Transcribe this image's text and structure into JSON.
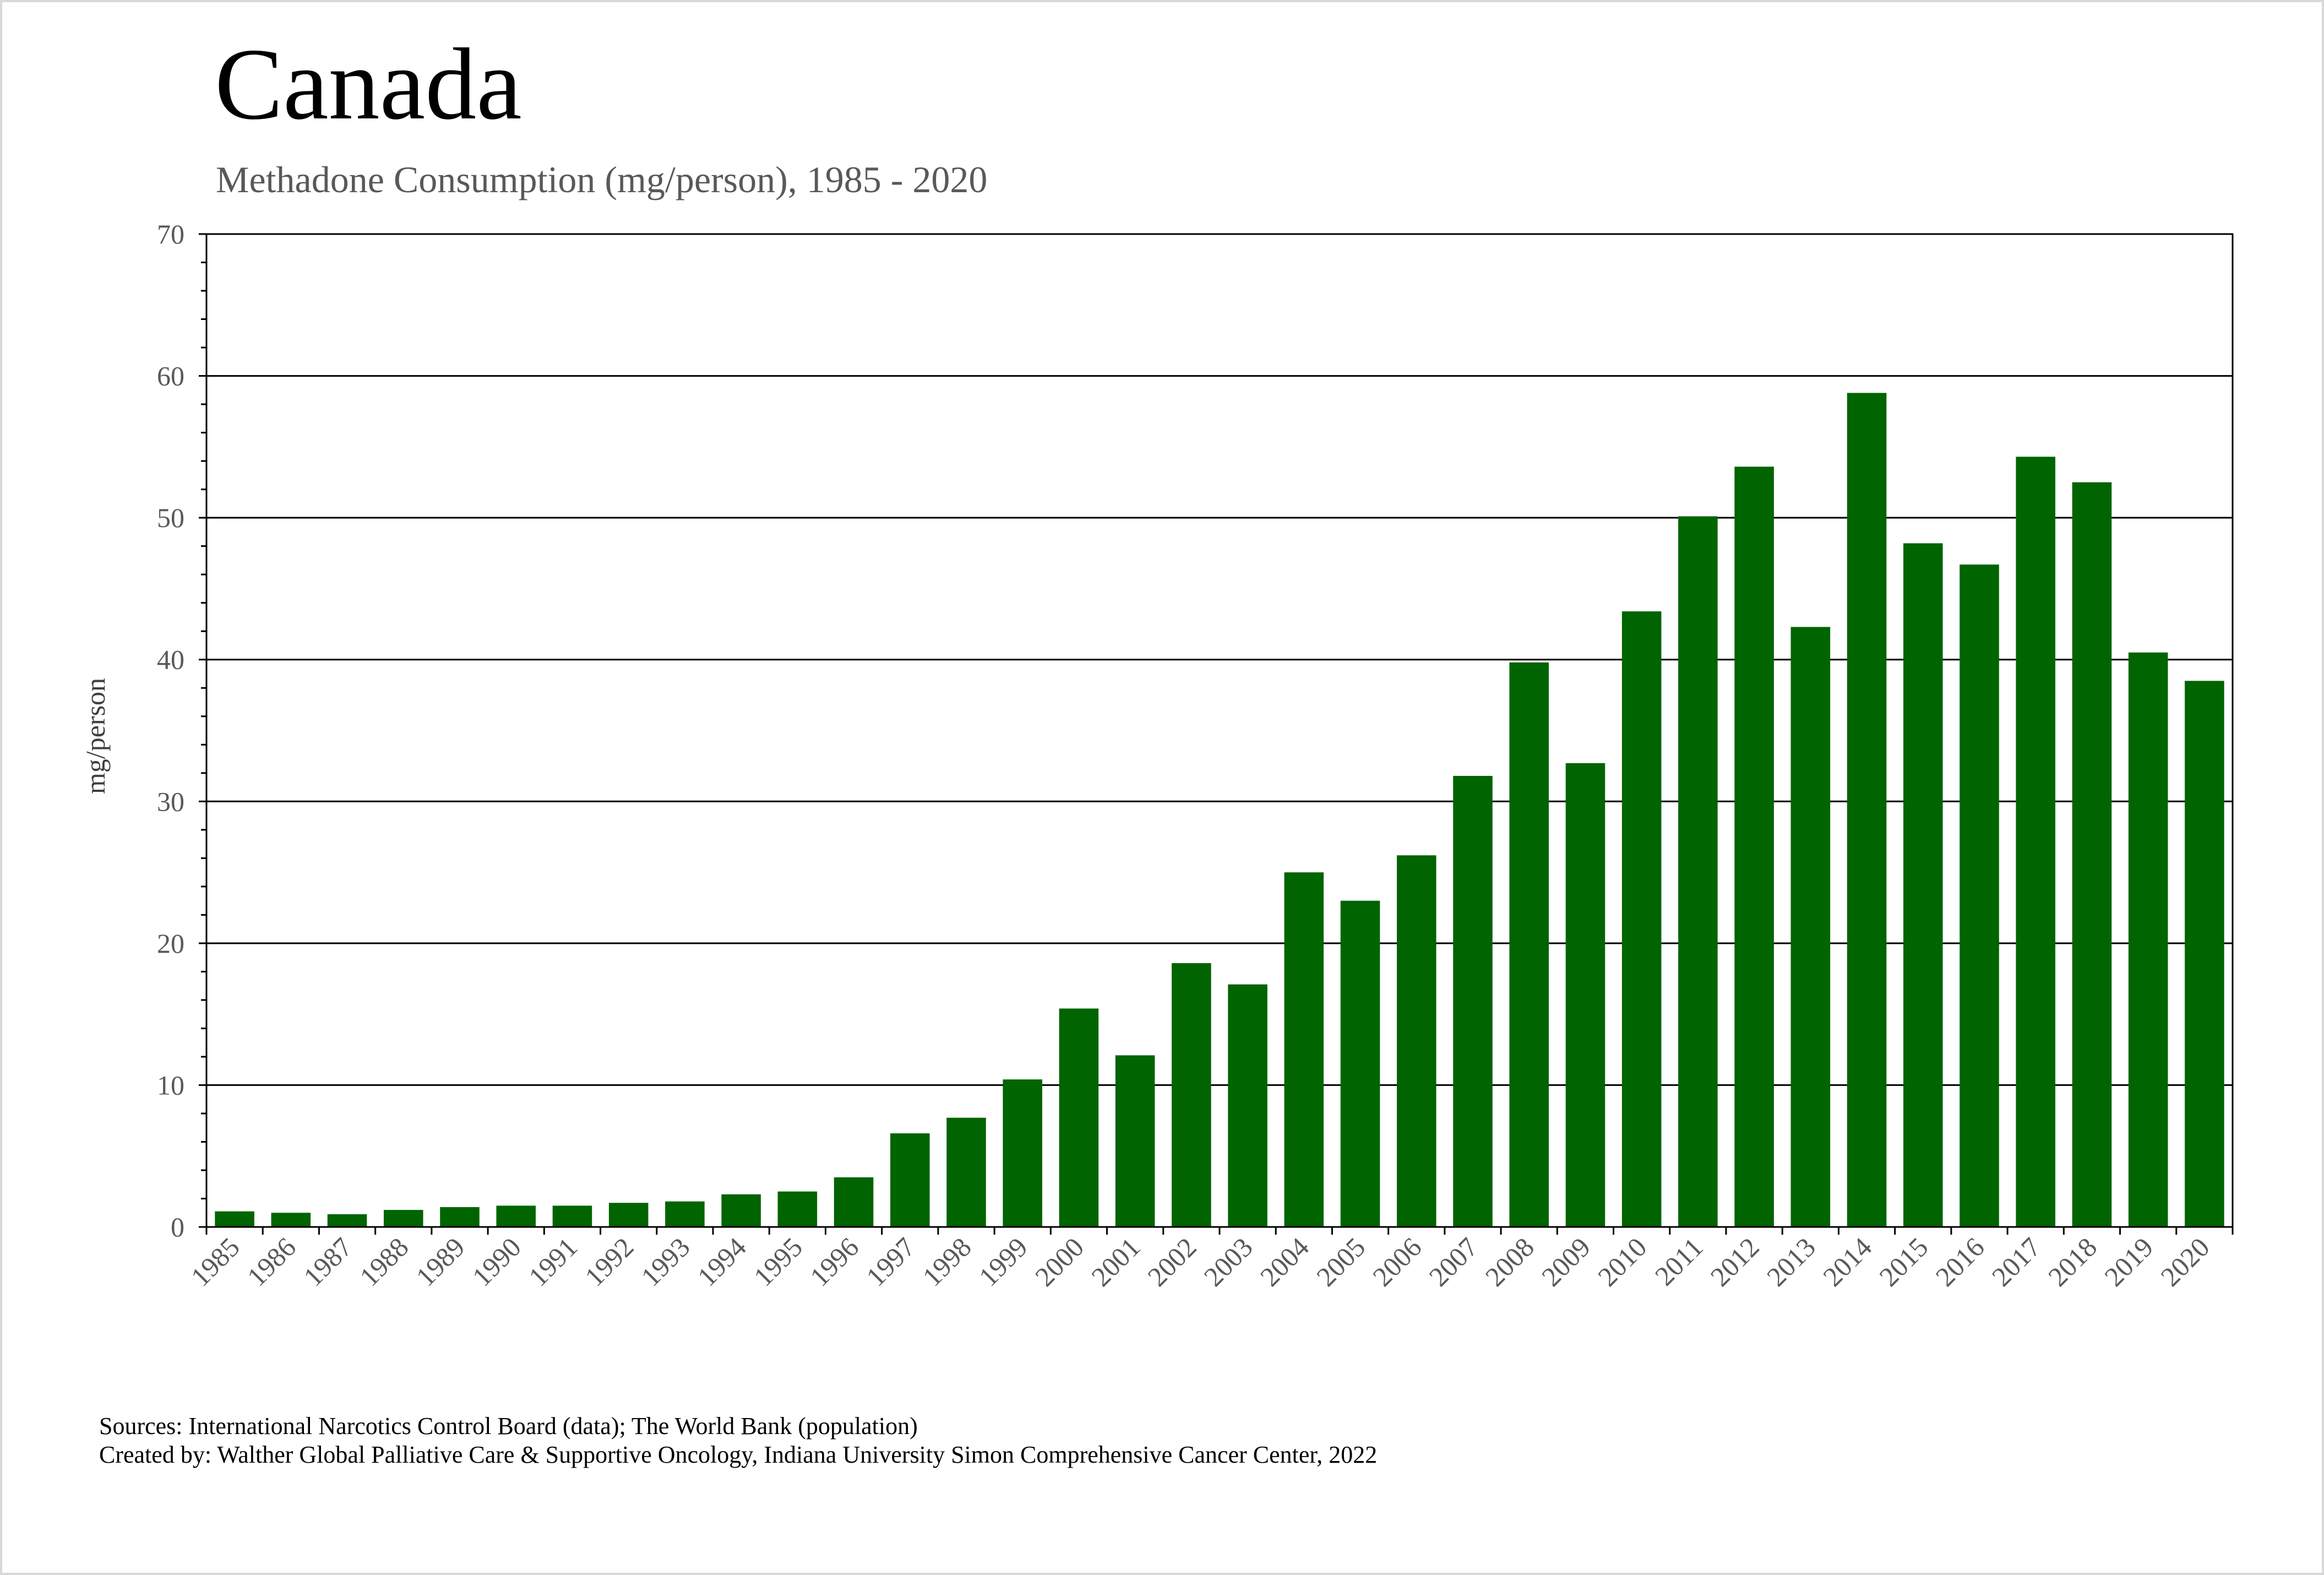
{
  "title": "Canada",
  "subtitle": "Methadone Consumption (mg/person), 1985 - 2020",
  "footer": {
    "sources": "Sources: International Narcotics Control Board (data); The World Bank (population)",
    "created_by": "Created by: Walther Global Palliative Care & Supportive Oncology, Indiana University Simon Comprehensive Cancer Center, 2022"
  },
  "chart_data": {
    "type": "bar",
    "title": "Canada",
    "subtitle": "Methadone Consumption (mg/person), 1985 - 2020",
    "xlabel": "",
    "ylabel": "mg/person",
    "ylim": [
      0,
      70
    ],
    "yticks": [
      0,
      10,
      20,
      30,
      40,
      50,
      60,
      70
    ],
    "grid": "horizontal major gridlines",
    "legend": "none",
    "bar_color": "#006400",
    "categories": [
      "1985",
      "1986",
      "1987",
      "1988",
      "1989",
      "1990",
      "1991",
      "1992",
      "1993",
      "1994",
      "1995",
      "1996",
      "1997",
      "1998",
      "1999",
      "2000",
      "2001",
      "2002",
      "2003",
      "2004",
      "2005",
      "2006",
      "2007",
      "2008",
      "2009",
      "2010",
      "2011",
      "2012",
      "2013",
      "2014",
      "2015",
      "2016",
      "2017",
      "2018",
      "2019",
      "2020"
    ],
    "values": [
      1.1,
      1.0,
      0.9,
      1.2,
      1.4,
      1.5,
      1.5,
      1.7,
      1.8,
      2.3,
      2.5,
      3.5,
      6.6,
      7.7,
      10.4,
      15.4,
      12.1,
      18.6,
      17.1,
      25.0,
      23.0,
      26.2,
      31.8,
      39.8,
      32.7,
      43.4,
      50.1,
      53.6,
      42.3,
      58.8,
      48.2,
      46.7,
      54.3,
      52.5,
      40.5,
      38.5
    ]
  }
}
